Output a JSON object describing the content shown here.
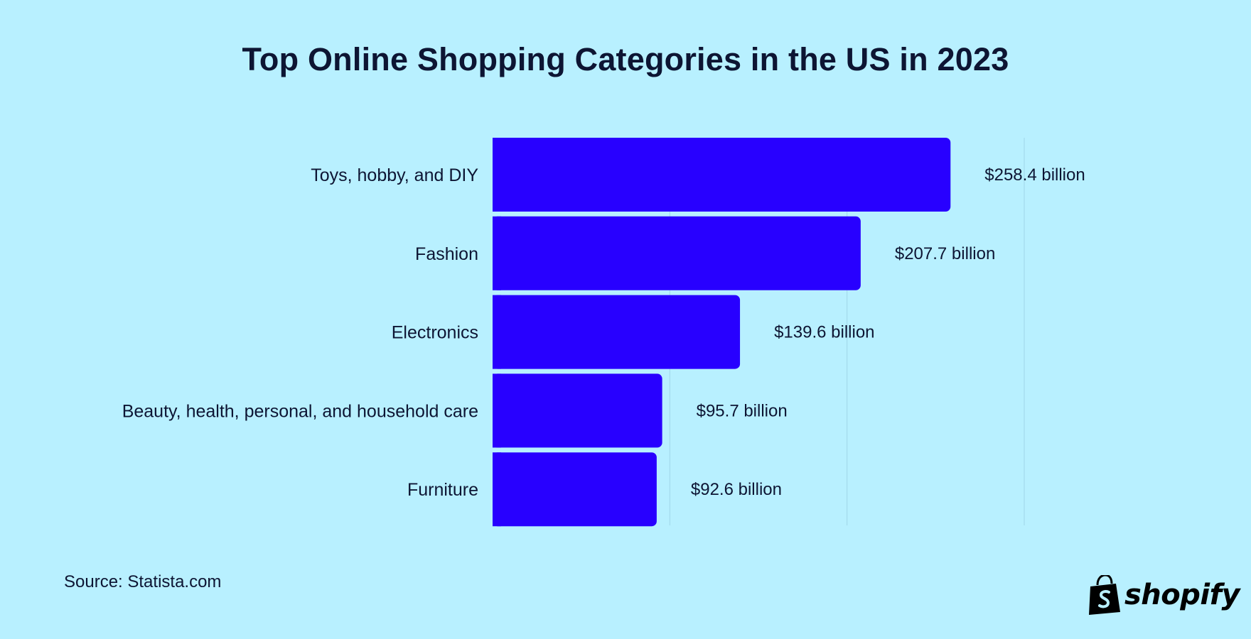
{
  "chart_data": {
    "type": "bar",
    "orientation": "horizontal",
    "title": "Top Online Shopping Categories in the US in 2023",
    "categories": [
      "Toys, hobby, and DIY",
      "Fashion",
      "Electronics",
      "Beauty, health, personal, and household care",
      "Furniture"
    ],
    "values": [
      258.4,
      207.7,
      139.6,
      95.7,
      92.6
    ],
    "value_labels": [
      "$258.4 billion",
      "$207.7 billion",
      "$139.6 billion",
      "$95.7 billion",
      "$92.6 billion"
    ],
    "unit": "billion USD",
    "xlim": [
      0,
      300
    ],
    "gridlines": [
      100,
      200,
      300
    ],
    "grid": true,
    "xlabel": "",
    "ylabel": "",
    "legend": "none",
    "bar_color": "#2800ff",
    "grid_color": "#9fd6e8"
  },
  "source": "Source: Statista.com",
  "brand": {
    "name": "shopify",
    "icon": "shopping-bag-icon",
    "color": "#000000"
  },
  "colors": {
    "background": "#b8f0ff",
    "text": "#0d1533"
  }
}
